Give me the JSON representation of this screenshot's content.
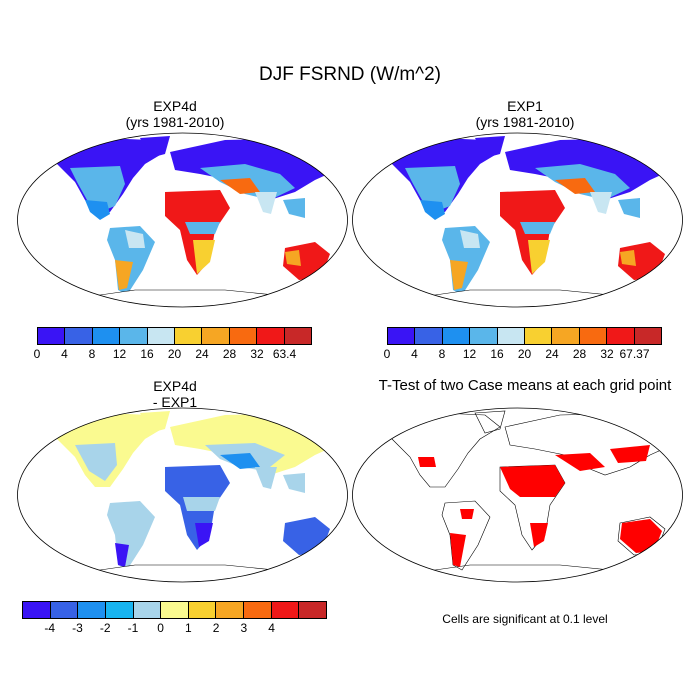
{
  "title": "DJF FSRND (W/m^2)",
  "panels": [
    {
      "id": "exp4d",
      "title_line1": "EXP4d",
      "title_line2": "(yrs 1981-2010)",
      "colorbar": {
        "labels": [
          "0",
          "4",
          "8",
          "12",
          "16",
          "20",
          "24",
          "28",
          "32",
          "63.4"
        ],
        "colors": [
          "#3a14f5",
          "#3862e6",
          "#1e90f0",
          "#5ab6ea",
          "#c8e6f2",
          "#f8d030",
          "#f6a623",
          "#f86a10",
          "#f01818",
          "#c82828"
        ]
      }
    },
    {
      "id": "exp1",
      "title_line1": "EXP1",
      "title_line2": "(yrs 1981-2010)",
      "colorbar": {
        "labels": [
          "0",
          "4",
          "8",
          "12",
          "16",
          "20",
          "24",
          "28",
          "32",
          "67.37"
        ],
        "colors": [
          "#3a14f5",
          "#3862e6",
          "#1e90f0",
          "#5ab6ea",
          "#c8e6f2",
          "#f8d030",
          "#f6a623",
          "#f86a10",
          "#f01818",
          "#c82828"
        ]
      }
    },
    {
      "id": "diff",
      "title_line1": "EXP4d",
      "title_line2": "- EXP1",
      "colorbar": {
        "labels": [
          "-4",
          "-3",
          "-2",
          "-1",
          "0",
          "1",
          "2",
          "3",
          "4"
        ],
        "colors": [
          "#3a14f5",
          "#3862e6",
          "#1e90f0",
          "#18b4f0",
          "#a8d4ea",
          "#fafa90",
          "#f8d030",
          "#f6a623",
          "#f86a10",
          "#f01818",
          "#c82828"
        ]
      }
    },
    {
      "id": "ttest",
      "title_line1": "T-Test of two Case means at each grid point",
      "title_line2": "",
      "note": "Cells are significant at 0.1 level",
      "fill_color": "#ff0000"
    }
  ]
}
